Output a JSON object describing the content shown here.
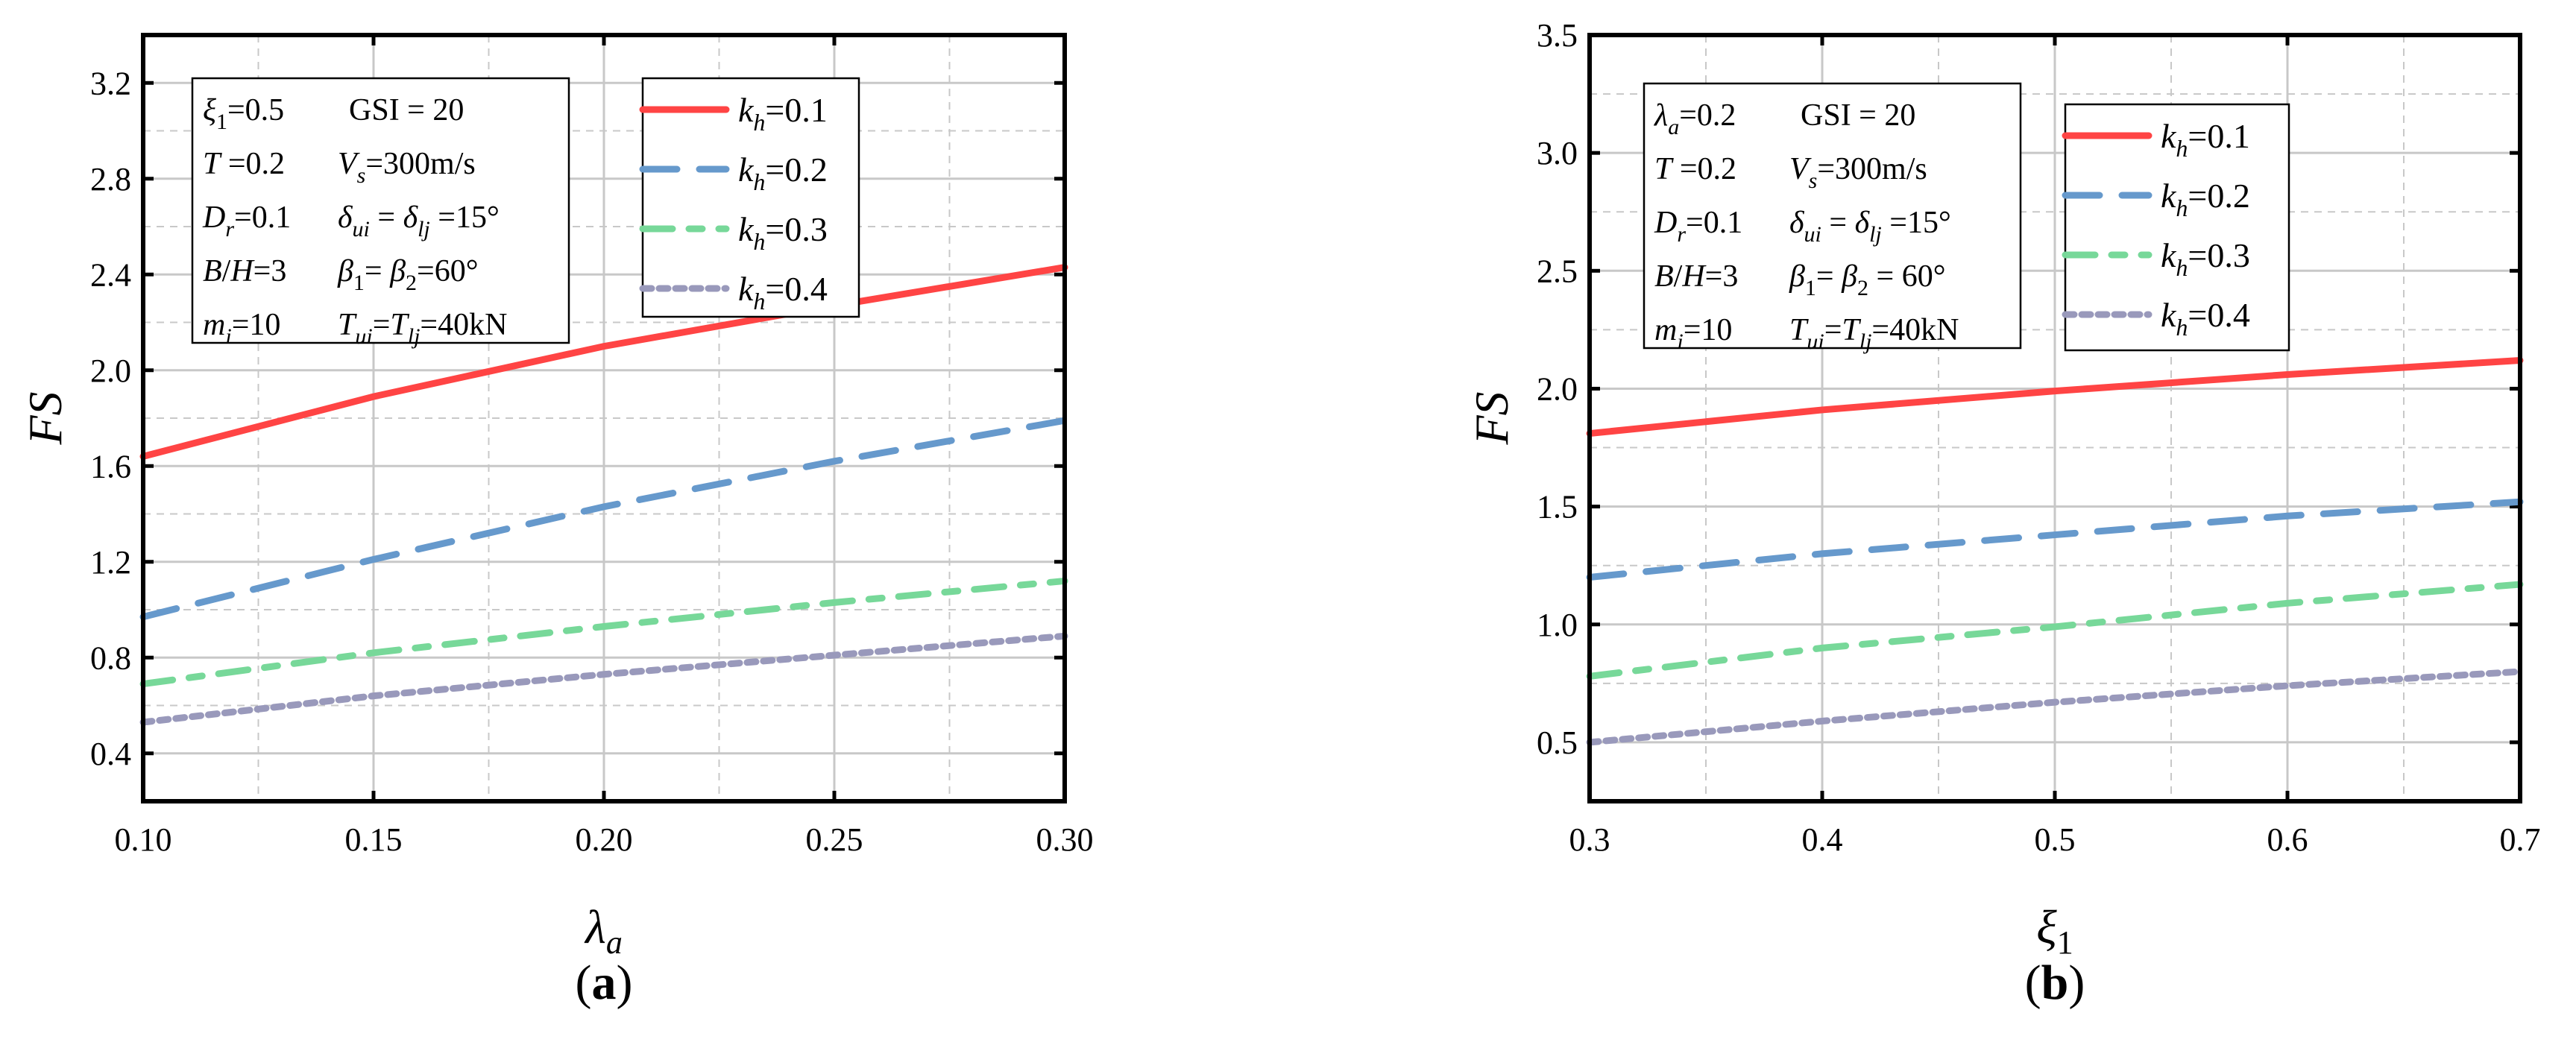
{
  "colors": {
    "kh01": "#ff4444",
    "kh02": "#6699cc",
    "kh03": "#77d899",
    "kh04": "#9999bb"
  },
  "chart_data": [
    {
      "type": "line",
      "panel_label": "a",
      "ylabel": "FS",
      "xlabel": {
        "base": "λ",
        "sub": "a"
      },
      "xlim": [
        0.1,
        0.3
      ],
      "ylim": [
        0.2,
        3.4
      ],
      "xticks": [
        "0.10",
        "0.15",
        "0.20",
        "0.25",
        "0.30"
      ],
      "yticks": [
        "0.4",
        "0.8",
        "1.2",
        "1.6",
        "2.0",
        "2.4",
        "2.8",
        "3.2"
      ],
      "grid": true,
      "legend_placement": "top-right",
      "x": [
        0.1,
        0.15,
        0.2,
        0.25,
        0.3
      ],
      "series": [
        {
          "name": "kh=0.1",
          "label_base": "k",
          "label_sub": "h",
          "label_val": "=0.1",
          "style": "solid",
          "color_key": "kh01",
          "values": [
            1.64,
            1.89,
            2.1,
            2.27,
            2.43
          ]
        },
        {
          "name": "kh=0.2",
          "label_base": "k",
          "label_sub": "h",
          "label_val": "=0.2",
          "style": "dash",
          "color_key": "kh02",
          "values": [
            0.97,
            1.21,
            1.43,
            1.62,
            1.79
          ]
        },
        {
          "name": "kh=0.3",
          "label_base": "k",
          "label_sub": "h",
          "label_val": "=0.3",
          "style": "dashdot",
          "color_key": "kh03",
          "values": [
            0.69,
            0.82,
            0.93,
            1.03,
            1.12
          ]
        },
        {
          "name": "kh=0.4",
          "label_base": "k",
          "label_sub": "h",
          "label_val": "=0.4",
          "style": "dot",
          "color_key": "kh04",
          "values": [
            0.53,
            0.64,
            0.73,
            0.81,
            0.89
          ]
        }
      ],
      "annotation_rows": [
        [
          [
            {
              "t": "ξ",
              "s": "i"
            },
            {
              "t": "1",
              "s": "sub"
            },
            {
              "t": "=0.5",
              "s": ""
            }
          ],
          [
            {
              "t": "GSI = 20",
              "s": ""
            }
          ]
        ],
        [
          [
            {
              "t": "T",
              "s": "i"
            },
            {
              "t": " =0.2",
              "s": ""
            }
          ],
          [
            {
              "t": "V",
              "s": "i"
            },
            {
              "t": "s",
              "s": "subi"
            },
            {
              "t": "=300m/s",
              "s": ""
            }
          ]
        ],
        [
          [
            {
              "t": "D",
              "s": "i"
            },
            {
              "t": "r",
              "s": "subi"
            },
            {
              "t": "=0.1",
              "s": ""
            }
          ],
          [
            {
              "t": "δ",
              "s": "i"
            },
            {
              "t": "ui",
              "s": "subi"
            },
            {
              "t": " = ",
              "s": ""
            },
            {
              "t": "δ",
              "s": "i"
            },
            {
              "t": "lj",
              "s": "subi"
            },
            {
              "t": " =15°",
              "s": ""
            }
          ]
        ],
        [
          [
            {
              "t": "B",
              "s": "i"
            },
            {
              "t": "/",
              "s": ""
            },
            {
              "t": "H",
              "s": "i"
            },
            {
              "t": "=3",
              "s": ""
            }
          ],
          [
            {
              "t": "β",
              "s": "i"
            },
            {
              "t": "1",
              "s": "sub"
            },
            {
              "t": "= ",
              "s": ""
            },
            {
              "t": "β",
              "s": "i"
            },
            {
              "t": "2",
              "s": "sub"
            },
            {
              "t": "=60°",
              "s": ""
            }
          ]
        ],
        [
          [
            {
              "t": " m",
              "s": "i"
            },
            {
              "t": "i",
              "s": "subi"
            },
            {
              "t": "=10",
              "s": ""
            }
          ],
          [
            {
              "t": "T",
              "s": "i"
            },
            {
              "t": "ui",
              "s": "subi"
            },
            {
              "t": "=",
              "s": ""
            },
            {
              "t": "T",
              "s": "i"
            },
            {
              "t": "lj",
              "s": "subi"
            },
            {
              "t": "=40kN",
              "s": ""
            }
          ]
        ]
      ]
    },
    {
      "type": "line",
      "panel_label": "b",
      "ylabel": "FS",
      "xlabel": {
        "base": "ξ",
        "sub": "1"
      },
      "xlim": [
        0.3,
        0.7
      ],
      "ylim": [
        0.25,
        3.5
      ],
      "xticks": [
        "0.3",
        "0.4",
        "0.5",
        "0.6",
        "0.7"
      ],
      "yticks": [
        "0.5",
        "1.0",
        "1.5",
        "2.0",
        "2.5",
        "3.0",
        "3.5"
      ],
      "grid": true,
      "legend_placement": "top-right",
      "x": [
        0.3,
        0.4,
        0.5,
        0.6,
        0.7
      ],
      "series": [
        {
          "name": "kh=0.1",
          "label_base": "k",
          "label_sub": "h",
          "label_val": "=0.1",
          "style": "solid",
          "color_key": "kh01",
          "values": [
            1.81,
            1.91,
            1.99,
            2.06,
            2.12
          ]
        },
        {
          "name": "kh=0.2",
          "label_base": "k",
          "label_sub": "h",
          "label_val": "=0.2",
          "style": "dash",
          "color_key": "kh02",
          "values": [
            1.2,
            1.3,
            1.38,
            1.46,
            1.52
          ]
        },
        {
          "name": "kh=0.3",
          "label_base": "k",
          "label_sub": "h",
          "label_val": "=0.3",
          "style": "dashdot",
          "color_key": "kh03",
          "values": [
            0.78,
            0.9,
            0.99,
            1.09,
            1.17
          ]
        },
        {
          "name": "kh=0.4",
          "label_base": "k",
          "label_sub": "h",
          "label_val": "=0.4",
          "style": "dot",
          "color_key": "kh04",
          "values": [
            0.5,
            0.59,
            0.67,
            0.74,
            0.8
          ]
        }
      ],
      "annotation_rows": [
        [
          [
            {
              "t": "λ",
              "s": "i"
            },
            {
              "t": "a",
              "s": "subi"
            },
            {
              "t": "=0.2",
              "s": ""
            }
          ],
          [
            {
              "t": "GSI = 20",
              "s": ""
            }
          ]
        ],
        [
          [
            {
              "t": "T",
              "s": "i"
            },
            {
              "t": " =0.2",
              "s": ""
            }
          ],
          [
            {
              "t": "V",
              "s": "i"
            },
            {
              "t": "s",
              "s": "subi"
            },
            {
              "t": "=300m/s",
              "s": ""
            }
          ]
        ],
        [
          [
            {
              "t": "D",
              "s": "i"
            },
            {
              "t": "r",
              "s": "subi"
            },
            {
              "t": "=0.1",
              "s": ""
            }
          ],
          [
            {
              "t": "δ",
              "s": "i"
            },
            {
              "t": "ui",
              "s": "subi"
            },
            {
              "t": " = ",
              "s": ""
            },
            {
              "t": "δ",
              "s": "i"
            },
            {
              "t": "lj",
              "s": "subi"
            },
            {
              "t": " =15°",
              "s": ""
            }
          ]
        ],
        [
          [
            {
              "t": "B",
              "s": "i"
            },
            {
              "t": "/",
              "s": ""
            },
            {
              "t": "H",
              "s": "i"
            },
            {
              "t": "=3",
              "s": ""
            }
          ],
          [
            {
              "t": "β",
              "s": "i"
            },
            {
              "t": "1",
              "s": "sub"
            },
            {
              "t": "= ",
              "s": ""
            },
            {
              "t": "β",
              "s": "i"
            },
            {
              "t": "2",
              "s": "sub"
            },
            {
              "t": " = 60°",
              "s": ""
            }
          ]
        ],
        [
          [
            {
              "t": " m",
              "s": "i"
            },
            {
              "t": "i",
              "s": "subi"
            },
            {
              "t": "=10",
              "s": ""
            }
          ],
          [
            {
              "t": "T",
              "s": "i"
            },
            {
              "t": "ui",
              "s": "subi"
            },
            {
              "t": "=",
              "s": ""
            },
            {
              "t": "T",
              "s": "i"
            },
            {
              "t": "lj",
              "s": "subi"
            },
            {
              "t": "=40kN",
              "s": ""
            }
          ]
        ]
      ]
    }
  ]
}
